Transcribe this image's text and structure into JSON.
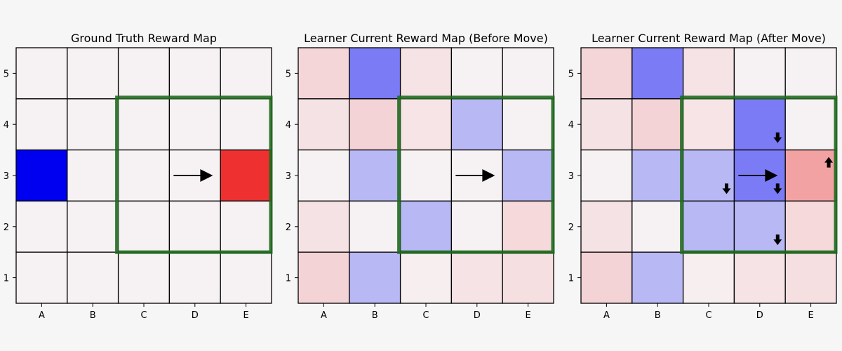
{
  "chart_data": [
    {
      "type": "heatmap",
      "title": "Ground Truth Reward Map",
      "x_ticks": [
        "A",
        "B",
        "C",
        "D",
        "E"
      ],
      "y_ticks": [
        "5",
        "4",
        "3",
        "2",
        "1"
      ],
      "grid": true,
      "cells": [
        [
          "#f6f1f2",
          "#f6f1f2",
          "#f6f1f2",
          "#f6f1f2",
          "#f6f1f2"
        ],
        [
          "#f6f1f2",
          "#f6f1f2",
          "#f6f1f2",
          "#f6f1f2",
          "#f6f1f2"
        ],
        [
          "#0000f0",
          "#f6f1f2",
          "#f6f1f2",
          "#f6f1f2",
          "#ef3030"
        ],
        [
          "#f6f1f2",
          "#f6f1f2",
          "#f6f1f2",
          "#f6f1f2",
          "#f6f1f2"
        ],
        [
          "#f6f1f2",
          "#f6f1f2",
          "#f6f1f2",
          "#f6f1f2",
          "#f6f1f2"
        ]
      ],
      "highlight": {
        "x_range": [
          "C",
          "E"
        ],
        "y_range": [
          "4",
          "2"
        ],
        "color": "#1f6a1f"
      },
      "move_arrow": {
        "x": "D",
        "y": "3",
        "direction": "right"
      },
      "small_arrows": []
    },
    {
      "type": "heatmap",
      "title": "Learner Current Reward Map (Before Move)",
      "x_ticks": [
        "A",
        "B",
        "C",
        "D",
        "E"
      ],
      "y_ticks": [
        "5",
        "4",
        "3",
        "2",
        "1"
      ],
      "grid": true,
      "cells": [
        [
          "#f4d6d8",
          "#7b7bf5",
          "#f6e3e5",
          "#f6f1f2",
          "#f6f1f2"
        ],
        [
          "#f5e2e4",
          "#f3d3d5",
          "#f6e4e6",
          "#b8b8f5",
          "#f6f1f2"
        ],
        [
          "#f6f1f2",
          "#b8b8f5",
          "#f6f1f2",
          "#f6f1f2",
          "#b8b8f5"
        ],
        [
          "#f5e2e4",
          "#f6f1f2",
          "#b8b8f5",
          "#f6f1f2",
          "#f5d9db"
        ],
        [
          "#f3d3d5",
          "#b8b8f5",
          "#f6eeef",
          "#f6e3e5",
          "#f5dfe1"
        ]
      ],
      "highlight": {
        "x_range": [
          "C",
          "E"
        ],
        "y_range": [
          "4",
          "2"
        ],
        "color": "#1f6a1f"
      },
      "move_arrow": {
        "x": "D",
        "y": "3",
        "direction": "right"
      },
      "small_arrows": []
    },
    {
      "type": "heatmap",
      "title": "Learner Current Reward Map (After Move)",
      "x_ticks": [
        "A",
        "B",
        "C",
        "D",
        "E"
      ],
      "y_ticks": [
        "5",
        "4",
        "3",
        "2",
        "1"
      ],
      "grid": true,
      "cells": [
        [
          "#f4d6d8",
          "#7b7bf5",
          "#f6e3e5",
          "#f6f1f2",
          "#f6f1f2"
        ],
        [
          "#f5e2e4",
          "#f3d3d5",
          "#f6e4e6",
          "#7b7bf5",
          "#f6f1f2"
        ],
        [
          "#f6f1f2",
          "#b8b8f5",
          "#b8b8f5",
          "#7b7bf5",
          "#f2a2a3"
        ],
        [
          "#f5e2e4",
          "#f6f1f2",
          "#b8b8f5",
          "#b8b8f5",
          "#f5d9db"
        ],
        [
          "#f3d3d5",
          "#b8b8f5",
          "#f6eeef",
          "#f6e3e5",
          "#f5dfe1"
        ]
      ],
      "highlight": {
        "x_range": [
          "C",
          "E"
        ],
        "y_range": [
          "4",
          "2"
        ],
        "color": "#1f6a1f"
      },
      "move_arrow": {
        "x": "D",
        "y": "3",
        "direction": "right"
      },
      "small_arrows": [
        {
          "x": "D",
          "y": "4",
          "direction": "down"
        },
        {
          "x": "C",
          "y": "3",
          "direction": "down"
        },
        {
          "x": "D",
          "y": "3",
          "direction": "down"
        },
        {
          "x": "E",
          "y": "3",
          "direction": "up"
        },
        {
          "x": "D",
          "y": "2",
          "direction": "down"
        }
      ]
    }
  ]
}
